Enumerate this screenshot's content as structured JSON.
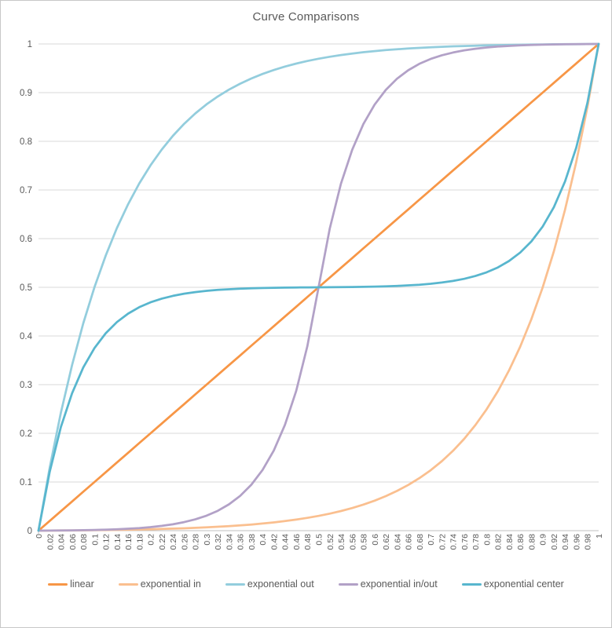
{
  "title": "Curve Comparisons",
  "colors": {
    "title_text": "#595959",
    "axis_label_text": "#595959",
    "gridline": "#d9d9d9",
    "axis_line": "#bfbfbf",
    "frame_border": "#c8c8c8",
    "background": "#ffffff"
  },
  "chart_data": {
    "type": "line",
    "title": "Curve Comparisons",
    "xlabel": "",
    "ylabel": "",
    "xlim": [
      0,
      1
    ],
    "ylim": [
      0,
      1
    ],
    "grid": true,
    "legend_position": "bottom",
    "y_ticks": [
      0,
      0.1,
      0.2,
      0.3,
      0.4,
      0.5,
      0.6,
      0.7,
      0.8,
      0.9,
      1
    ],
    "x": [
      0,
      0.02,
      0.04,
      0.06,
      0.08,
      0.1,
      0.12,
      0.14,
      0.16,
      0.18,
      0.2,
      0.22,
      0.24,
      0.26,
      0.28,
      0.3,
      0.32,
      0.34,
      0.36,
      0.38,
      0.4,
      0.42,
      0.44,
      0.46,
      0.48,
      0.5,
      0.52,
      0.54,
      0.56,
      0.58,
      0.6,
      0.62,
      0.64,
      0.66,
      0.68,
      0.7,
      0.72,
      0.74,
      0.76,
      0.78,
      0.8,
      0.82,
      0.84,
      0.86,
      0.88,
      0.9,
      0.92,
      0.94,
      0.96,
      0.98,
      1
    ],
    "series": [
      {
        "name": "linear",
        "color": "#F79646",
        "values": [
          0,
          0.02,
          0.04,
          0.06,
          0.08,
          0.1,
          0.12,
          0.14,
          0.16,
          0.18,
          0.2,
          0.22,
          0.24,
          0.26,
          0.28,
          0.3,
          0.32,
          0.34,
          0.36,
          0.38,
          0.4,
          0.42,
          0.44,
          0.46,
          0.48,
          0.5,
          0.52,
          0.54,
          0.56,
          0.58,
          0.6,
          0.62,
          0.64,
          0.66,
          0.68,
          0.7,
          0.72,
          0.74,
          0.76,
          0.78,
          0.8,
          0.82,
          0.84,
          0.86,
          0.88,
          0.9,
          0.92,
          0.94,
          0.96,
          0.98,
          1
        ]
      },
      {
        "name": "exponential in",
        "color": "#FABF8F",
        "values": [
          0,
          0.0001,
          0.0003,
          0.0005,
          0.0007,
          0.001,
          0.0013,
          0.0016,
          0.002,
          0.0024,
          0.0029,
          0.0035,
          0.0042,
          0.0049,
          0.0058,
          0.0068,
          0.008,
          0.0093,
          0.0109,
          0.0126,
          0.0147,
          0.017,
          0.0197,
          0.0227,
          0.0263,
          0.0303,
          0.035,
          0.0403,
          0.0464,
          0.0535,
          0.0616,
          0.0709,
          0.0816,
          0.0938,
          0.1079,
          0.1241,
          0.1427,
          0.1641,
          0.1887,
          0.2169,
          0.2493,
          0.2865,
          0.3292,
          0.3783,
          0.4347,
          0.4995,
          0.5739,
          0.6594,
          0.7576,
          0.8704,
          1
        ]
      },
      {
        "name": "exponential out",
        "color": "#93CDDD",
        "values": [
          0,
          0.1296,
          0.2424,
          0.3406,
          0.4261,
          0.5005,
          0.5653,
          0.6217,
          0.6708,
          0.7135,
          0.7507,
          0.7831,
          0.8113,
          0.8359,
          0.8573,
          0.8759,
          0.8921,
          0.9062,
          0.9184,
          0.9291,
          0.9384,
          0.9465,
          0.9536,
          0.9597,
          0.965,
          0.9697,
          0.9737,
          0.9773,
          0.9803,
          0.983,
          0.9853,
          0.9874,
          0.9891,
          0.9907,
          0.992,
          0.9932,
          0.9942,
          0.9951,
          0.9958,
          0.9965,
          0.9971,
          0.9976,
          0.998,
          0.9984,
          0.9987,
          0.999,
          0.9993,
          0.9995,
          0.9997,
          0.9999,
          1
        ]
      },
      {
        "name": "exponential in/out",
        "color": "#B2A1C7",
        "values": [
          0,
          0.0002,
          0.0004,
          0.0006,
          0.001,
          0.0015,
          0.0021,
          0.0029,
          0.004,
          0.0054,
          0.0073,
          0.0098,
          0.0131,
          0.0175,
          0.0232,
          0.0308,
          0.0408,
          0.054,
          0.0714,
          0.0943,
          0.1246,
          0.1646,
          0.2174,
          0.287,
          0.3788,
          0.5,
          0.6212,
          0.713,
          0.7826,
          0.8354,
          0.8754,
          0.9057,
          0.9286,
          0.946,
          0.9592,
          0.9692,
          0.9768,
          0.9825,
          0.9869,
          0.9902,
          0.9927,
          0.9946,
          0.996,
          0.9971,
          0.9979,
          0.9985,
          0.999,
          0.9994,
          0.9996,
          0.9998,
          1
        ]
      },
      {
        "name": "exponential center",
        "color": "#58B6CE",
        "values": [
          0,
          0.1212,
          0.213,
          0.2826,
          0.3354,
          0.3754,
          0.4057,
          0.4286,
          0.446,
          0.4592,
          0.4692,
          0.4768,
          0.4825,
          0.4869,
          0.4902,
          0.4927,
          0.4946,
          0.496,
          0.4971,
          0.4979,
          0.4985,
          0.499,
          0.4994,
          0.4996,
          0.4998,
          0.5,
          0.5002,
          0.5004,
          0.5006,
          0.501,
          0.5015,
          0.5021,
          0.5029,
          0.504,
          0.5054,
          0.5073,
          0.5098,
          0.5131,
          0.5175,
          0.5232,
          0.5308,
          0.5408,
          0.554,
          0.5714,
          0.5943,
          0.6246,
          0.6646,
          0.7174,
          0.787,
          0.8788,
          1
        ]
      }
    ]
  }
}
